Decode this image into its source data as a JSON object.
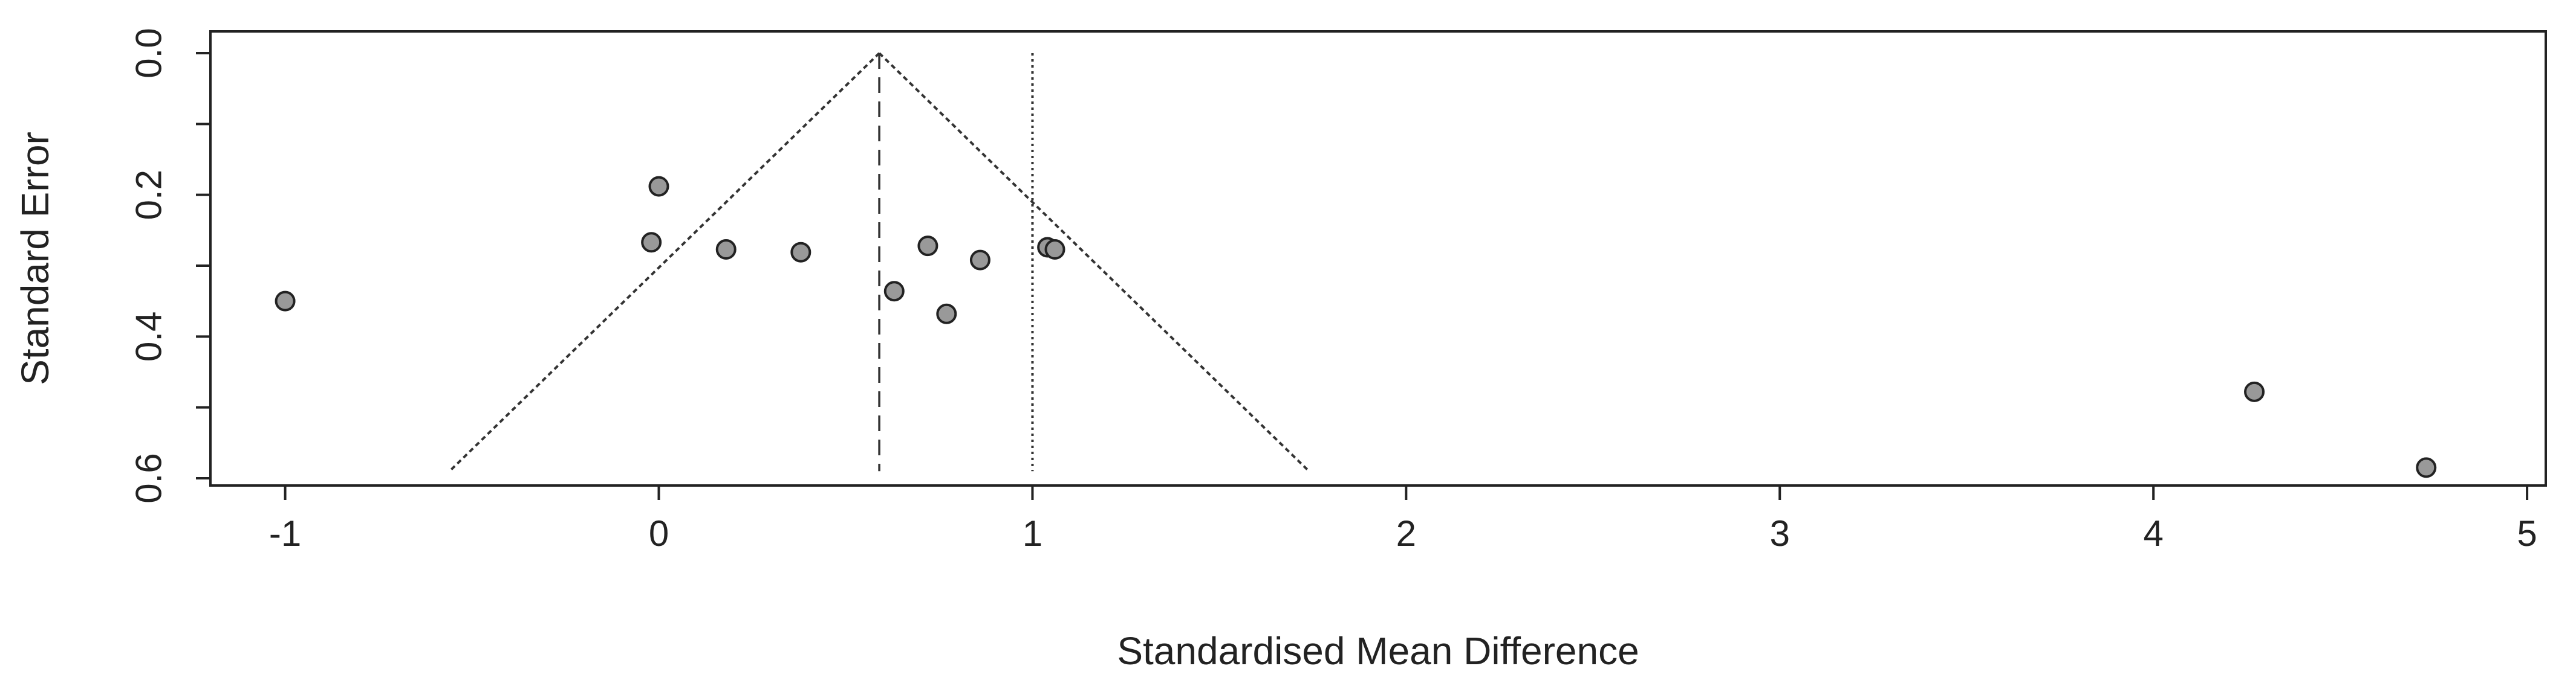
{
  "chart_data": {
    "type": "scatter",
    "subtype": "funnel-plot",
    "title": "",
    "xlabel": "Standardised Mean Difference",
    "ylabel": "Standard Error",
    "xlim": [
      -1.2,
      5.05
    ],
    "ylim": [
      0.0,
      0.6
    ],
    "y_inverted": true,
    "x_ticks": [
      -1,
      0,
      1,
      2,
      3,
      4,
      5
    ],
    "x_tick_labels": [
      "-1",
      "0",
      "1",
      "2",
      "3",
      "4",
      "5"
    ],
    "y_ticks": [
      0.0,
      0.1,
      0.2,
      0.3,
      0.4,
      0.5,
      0.6
    ],
    "y_tick_labels": [
      "0.0",
      "",
      "0.2",
      "",
      "0.4",
      "",
      "0.6"
    ],
    "grid": false,
    "legend": "none",
    "point_color": "#999999",
    "point_edge": "#222222",
    "pooled_estimate": 0.59,
    "null_line": 1.0,
    "funnel": {
      "apex": [
        0.59,
        0.0
      ],
      "base_left": [
        -0.56,
        0.59
      ],
      "base_right": [
        1.74,
        0.59
      ]
    },
    "points": [
      {
        "x": -1.0,
        "y": 0.35
      },
      {
        "x": -0.02,
        "y": 0.267
      },
      {
        "x": 0.0,
        "y": 0.188
      },
      {
        "x": 0.18,
        "y": 0.277
      },
      {
        "x": 0.38,
        "y": 0.281
      },
      {
        "x": 0.63,
        "y": 0.336
      },
      {
        "x": 0.72,
        "y": 0.272
      },
      {
        "x": 0.77,
        "y": 0.368
      },
      {
        "x": 0.86,
        "y": 0.292
      },
      {
        "x": 1.04,
        "y": 0.274
      },
      {
        "x": 1.06,
        "y": 0.277
      },
      {
        "x": 4.27,
        "y": 0.478
      },
      {
        "x": 4.73,
        "y": 0.585
      }
    ]
  }
}
